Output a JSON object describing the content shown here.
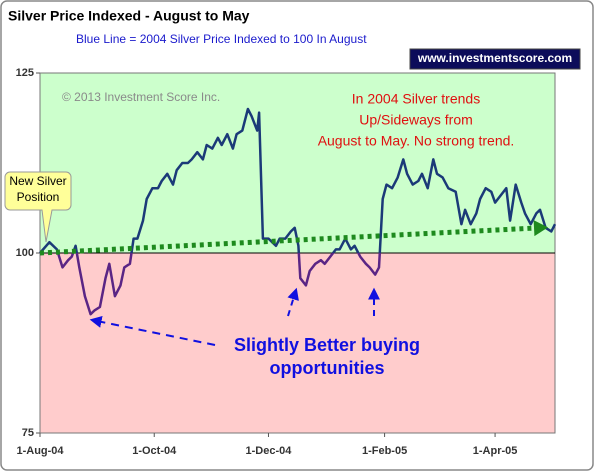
{
  "chart_data": {
    "type": "line",
    "title": "Silver Price Indexed - August to May",
    "subtitle": "Blue Line =  2004 Silver Price Indexed to 100 In August",
    "website": "www.investmentscore.com",
    "copyright": "© 2013 Investment Score Inc.",
    "callout": [
      "New Silver",
      "Position"
    ],
    "note": [
      "In 2004 Silver trends",
      "Up/Sideways from",
      "August to May.  No strong trend."
    ],
    "buying_note": [
      "Slightly Better buying",
      "opportunities"
    ],
    "x": [
      "2004-08-01",
      "2004-08-06",
      "2004-08-10",
      "2004-08-13",
      "2004-08-16",
      "2004-08-18",
      "2004-08-20",
      "2004-08-22",
      "2004-08-25",
      "2004-08-28",
      "2004-08-30",
      "2004-09-02",
      "2004-09-05",
      "2004-09-07",
      "2004-09-10",
      "2004-09-13",
      "2004-09-15",
      "2004-09-18",
      "2004-09-20",
      "2004-09-22",
      "2004-09-25",
      "2004-09-27",
      "2004-09-30",
      "2004-10-03",
      "2004-10-05",
      "2004-10-08",
      "2004-10-11",
      "2004-10-13",
      "2004-10-16",
      "2004-10-19",
      "2004-10-21",
      "2004-10-24",
      "2004-10-27",
      "2004-10-29",
      "2004-11-01",
      "2004-11-04",
      "2004-11-06",
      "2004-11-09",
      "2004-11-12",
      "2004-11-14",
      "2004-11-17",
      "2004-11-20",
      "2004-11-22",
      "2004-11-25",
      "2004-11-26",
      "2004-11-28",
      "2004-12-01",
      "2004-12-03",
      "2004-12-05",
      "2004-12-07",
      "2004-12-10",
      "2004-12-13",
      "2004-12-15",
      "2004-12-17",
      "2004-12-18",
      "2004-12-21",
      "2004-12-23",
      "2004-12-26",
      "2004-12-29",
      "2004-12-31",
      "2005-01-03",
      "2005-01-06",
      "2005-01-08",
      "2005-01-11",
      "2005-01-14",
      "2005-01-16",
      "2005-01-19",
      "2005-01-22",
      "2005-01-24",
      "2005-01-27",
      "2005-01-29",
      "2005-01-31",
      "2005-02-02",
      "2005-02-05",
      "2005-02-08",
      "2005-02-11",
      "2005-02-13",
      "2005-02-16",
      "2005-02-19",
      "2005-02-21",
      "2005-02-24",
      "2005-02-27",
      "2005-03-01",
      "2005-03-04",
      "2005-03-07",
      "2005-03-11",
      "2005-03-14",
      "2005-03-16",
      "2005-03-19",
      "2005-03-22",
      "2005-03-24",
      "2005-03-27",
      "2005-03-30",
      "2005-04-01",
      "2005-04-04",
      "2005-04-07",
      "2005-04-09",
      "2005-04-12",
      "2005-04-15",
      "2005-04-17",
      "2005-04-20",
      "2005-04-23",
      "2005-04-25",
      "2005-04-28",
      "2005-05-01",
      "2005-05-03"
    ],
    "values": [
      100,
      101.5,
      100.5,
      98,
      99,
      99.5,
      101,
      98,
      94,
      91.5,
      92,
      92.5,
      96.5,
      98.5,
      94,
      95.5,
      98,
      98.5,
      102,
      102,
      104.5,
      107.5,
      109,
      109,
      110,
      111,
      109.5,
      111.5,
      112.5,
      112.5,
      113,
      114,
      113,
      115,
      114.5,
      116,
      115,
      116.5,
      114.5,
      116.5,
      117,
      120,
      119,
      117,
      119.5,
      102,
      102,
      101.5,
      101,
      102,
      102,
      103,
      103.5,
      101,
      96.5,
      95.5,
      97.5,
      98.5,
      99,
      98.5,
      99.5,
      100.5,
      100.5,
      102,
      100.5,
      101,
      99.5,
      98.5,
      98,
      97,
      98,
      107.5,
      109.5,
      109,
      110.5,
      113,
      111,
      109.5,
      110,
      111,
      109,
      113,
      111,
      110.5,
      109,
      108.5,
      104,
      106,
      104,
      105.5,
      107.5,
      109,
      108.5,
      107,
      108,
      109,
      104.5,
      109.5,
      107,
      105.5,
      104,
      105.5,
      106,
      103.5,
      103,
      104
    ],
    "color": "#1b3a78",
    "below_color": "#5a2585",
    "baseline": 100,
    "upper_fill": "#ccffcc",
    "lower_fill": "#ffcccc",
    "trend": {
      "x": [
        "2004-08-01",
        "2005-04-25"
      ],
      "values": [
        100,
        103.5
      ],
      "color": "#1e8a1e"
    },
    "xlim": [
      "2004-08-01",
      "2005-05-03"
    ],
    "xticks": [
      {
        "value": "2004-08-01",
        "label": "1-Aug-04"
      },
      {
        "value": "2004-10-01",
        "label": "1-Oct-04"
      },
      {
        "value": "2004-12-01",
        "label": "1-Dec-04"
      },
      {
        "value": "2005-02-01",
        "label": "1-Feb-05"
      },
      {
        "value": "2005-04-01",
        "label": "1-Apr-05"
      }
    ],
    "ylim": [
      75,
      125
    ],
    "yticks": [
      75,
      100,
      125
    ]
  }
}
